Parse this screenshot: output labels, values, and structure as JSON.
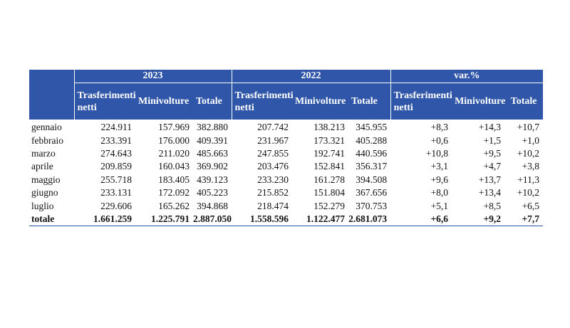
{
  "headers": {
    "years": [
      "2023",
      "2022",
      "var.%"
    ],
    "sub": [
      "Trasferimenti netti",
      "Minivolture",
      "Totale",
      "Trasferimenti netti",
      "Minivolture",
      "Totale",
      "Trasferimenti netti",
      "Minivolture",
      "Totale"
    ]
  },
  "rows": [
    {
      "month": "gennaio",
      "v": [
        "224.911",
        "157.969",
        "382.880",
        "207.742",
        "138.213",
        "345.955",
        "+8,3",
        "+14,3",
        "+10,7"
      ]
    },
    {
      "month": "febbraio",
      "v": [
        "233.391",
        "176.000",
        "409.391",
        "231.967",
        "173.321",
        "405.288",
        "+0,6",
        "+1,5",
        "+1,0"
      ]
    },
    {
      "month": "marzo",
      "v": [
        "274.643",
        "211.020",
        "485.663",
        "247.855",
        "192.741",
        "440.596",
        "+10,8",
        "+9,5",
        "+10,2"
      ]
    },
    {
      "month": "aprile",
      "v": [
        "209.859",
        "160.043",
        "369.902",
        "203.476",
        "152.841",
        "356.317",
        "+3,1",
        "+4,7",
        "+3,8"
      ]
    },
    {
      "month": "maggio",
      "v": [
        "255.718",
        "183.405",
        "439.123",
        "233.230",
        "161.278",
        "394.508",
        "+9,6",
        "+13,7",
        "+11,3"
      ]
    },
    {
      "month": "giugno",
      "v": [
        "233.131",
        "172.092",
        "405.223",
        "215.852",
        "151.804",
        "367.656",
        "+8,0",
        "+13,4",
        "+10,2"
      ]
    },
    {
      "month": "luglio",
      "v": [
        "229.606",
        "165.262",
        "394.868",
        "218.474",
        "152.279",
        "370.753",
        "+5,1",
        "+8,5",
        "+6,5"
      ]
    }
  ],
  "total": {
    "label": "totale",
    "v": [
      "1.661.259",
      "1.225.791",
      "2.887.050",
      "1.558.596",
      "1.122.477",
      "2.681.073",
      "+6,6",
      "+9,2",
      "+7,7"
    ]
  },
  "colors": {
    "header_bg": "#2f56a8",
    "header_text": "#ffffff"
  }
}
